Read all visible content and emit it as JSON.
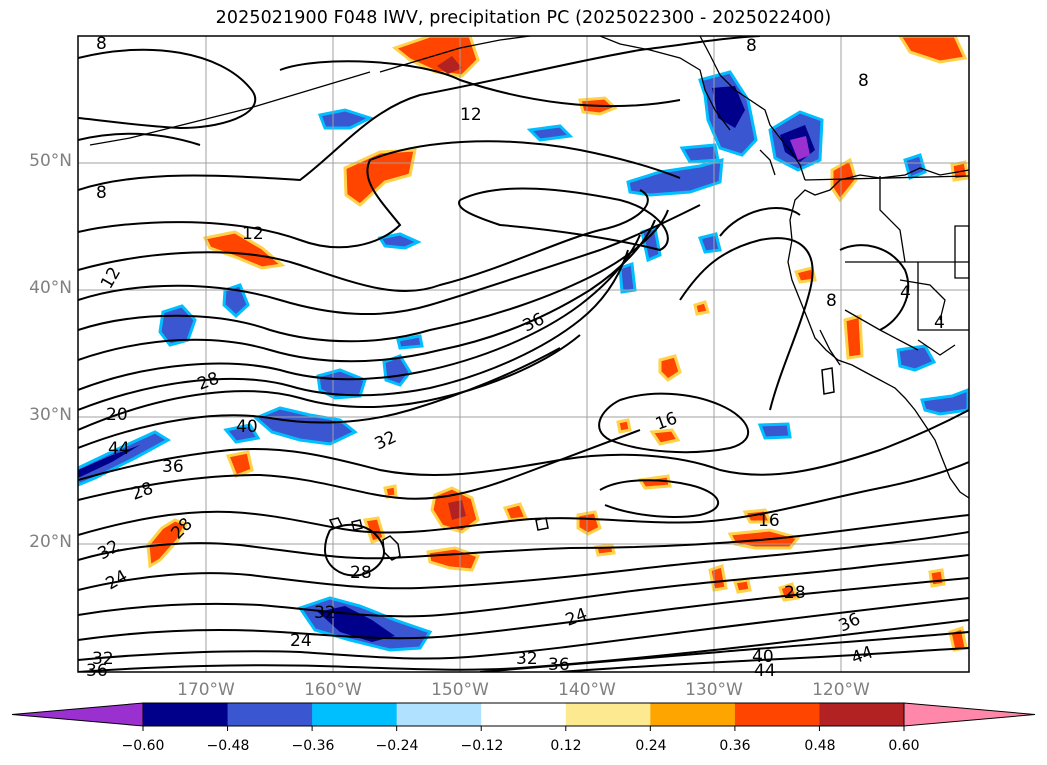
{
  "title": "2025021900 F048 IWV, precipitation PC (2025022300 - 2025022400)",
  "map": {
    "lat_labels": [
      {
        "text": "50°N",
        "lat": 50
      },
      {
        "text": "40°N",
        "lat": 40
      },
      {
        "text": "30°N",
        "lat": 30
      },
      {
        "text": "20°N",
        "lat": 20
      }
    ],
    "lon_labels": [
      {
        "text": "170°W",
        "lon": -170
      },
      {
        "text": "160°W",
        "lon": -160
      },
      {
        "text": "150°W",
        "lon": -150
      },
      {
        "text": "140°W",
        "lon": -140
      },
      {
        "text": "130°W",
        "lon": -130
      },
      {
        "text": "120°W",
        "lon": -120
      }
    ],
    "gridlines": true,
    "contour_labels": [
      "8",
      "12",
      "12",
      "12",
      "8",
      "8",
      "8",
      "20",
      "28",
      "44",
      "40",
      "36",
      "28",
      "28",
      "32",
      "24",
      "36",
      "32",
      "16",
      "16",
      "28",
      "28",
      "32",
      "24",
      "24",
      "32",
      "36",
      "40",
      "44",
      "36",
      "44",
      "32",
      "36",
      "8",
      "4",
      "4"
    ]
  },
  "colorbar": {
    "ticks": [
      "−0.60",
      "−0.48",
      "−0.36",
      "−0.24",
      "−0.12",
      "0.12",
      "0.24",
      "0.36",
      "0.48",
      "0.60"
    ],
    "colors": [
      "#9b30d0",
      "#00008b",
      "#3a56d0",
      "#00bfff",
      "#b0e2ff",
      "#ffffff",
      "#fde98f",
      "#ffa500",
      "#ff4500",
      "#b22222",
      "#ff88aa"
    ]
  }
}
